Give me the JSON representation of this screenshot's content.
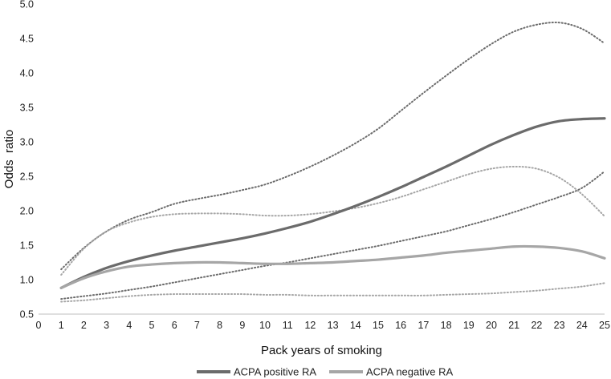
{
  "chart_data": {
    "type": "line",
    "title": "",
    "xlabel": "Pack years of smoking",
    "ylabel": "Odds  ratio",
    "xlim": [
      0,
      25
    ],
    "ylim": [
      0.5,
      5.0
    ],
    "x_ticks": [
      0,
      1,
      2,
      3,
      4,
      5,
      6,
      7,
      8,
      9,
      10,
      11,
      12,
      13,
      14,
      15,
      16,
      17,
      18,
      19,
      20,
      21,
      22,
      23,
      24,
      25
    ],
    "y_ticks": [
      0.5,
      1.0,
      1.5,
      2.0,
      2.5,
      3.0,
      3.5,
      4.0,
      4.5,
      5.0
    ],
    "y_tick_labels": [
      "0.5",
      "1.0",
      "1.5",
      "2.0",
      "2.5",
      "3.0",
      "3.5",
      "4.0",
      "4.5",
      "5.0"
    ],
    "grid": false,
    "legend_position": "bottom",
    "x": [
      1,
      2,
      3,
      4,
      5,
      6,
      7,
      8,
      9,
      10,
      11,
      12,
      13,
      14,
      15,
      16,
      17,
      18,
      19,
      20,
      21,
      22,
      23,
      24,
      25
    ],
    "series": [
      {
        "name": "ACPA positive RA",
        "style": "solid",
        "color": "#6b6b6b",
        "values": [
          0.88,
          1.04,
          1.17,
          1.27,
          1.35,
          1.42,
          1.48,
          1.54,
          1.6,
          1.67,
          1.75,
          1.84,
          1.95,
          2.07,
          2.2,
          2.34,
          2.49,
          2.64,
          2.8,
          2.96,
          3.1,
          3.22,
          3.3,
          3.33,
          3.34
        ],
        "ci_upper": [
          1.15,
          1.46,
          1.7,
          1.87,
          1.98,
          2.1,
          2.17,
          2.23,
          2.3,
          2.38,
          2.5,
          2.64,
          2.8,
          2.98,
          3.19,
          3.45,
          3.71,
          3.96,
          4.2,
          4.42,
          4.6,
          4.7,
          4.73,
          4.64,
          4.43
        ],
        "ci_lower": [
          0.72,
          0.76,
          0.8,
          0.85,
          0.9,
          0.96,
          1.02,
          1.08,
          1.14,
          1.2,
          1.25,
          1.31,
          1.37,
          1.43,
          1.49,
          1.56,
          1.63,
          1.7,
          1.79,
          1.88,
          1.98,
          2.09,
          2.2,
          2.33,
          2.57
        ]
      },
      {
        "name": "ACPA negative RA",
        "style": "solid",
        "color": "#a6a6a6",
        "values": [
          0.88,
          1.02,
          1.12,
          1.19,
          1.22,
          1.24,
          1.25,
          1.25,
          1.24,
          1.23,
          1.23,
          1.24,
          1.25,
          1.27,
          1.29,
          1.32,
          1.35,
          1.39,
          1.42,
          1.45,
          1.48,
          1.48,
          1.46,
          1.41,
          1.31
        ],
        "ci_upper": [
          1.07,
          1.45,
          1.7,
          1.83,
          1.91,
          1.95,
          1.96,
          1.96,
          1.95,
          1.93,
          1.93,
          1.95,
          1.99,
          2.04,
          2.11,
          2.2,
          2.31,
          2.42,
          2.53,
          2.61,
          2.64,
          2.61,
          2.48,
          2.24,
          1.92
        ],
        "ci_lower": [
          0.68,
          0.7,
          0.73,
          0.76,
          0.78,
          0.79,
          0.79,
          0.79,
          0.79,
          0.78,
          0.78,
          0.77,
          0.77,
          0.77,
          0.77,
          0.77,
          0.77,
          0.78,
          0.79,
          0.8,
          0.82,
          0.84,
          0.87,
          0.9,
          0.95
        ]
      }
    ]
  }
}
